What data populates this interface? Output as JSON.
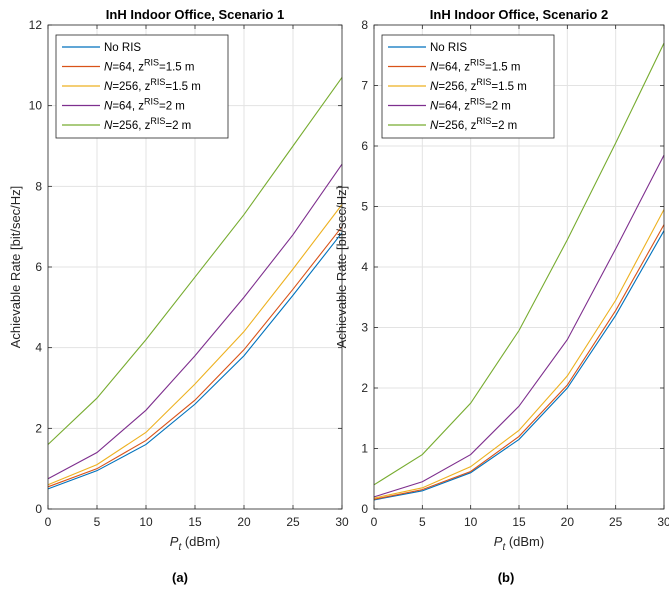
{
  "chart_data": [
    {
      "type": "line",
      "title": "InH Indoor Office, Scenario 1",
      "xlabel": {
        "main": "P",
        "sub": "t",
        "unit": " (dBm)"
      },
      "ylabel": "Achievable Rate [bit/sec/Hz]",
      "panel_label": "(a)",
      "x": [
        0,
        5,
        10,
        15,
        20,
        25,
        30
      ],
      "xlim": [
        0,
        30
      ],
      "ylim": [
        0,
        12
      ],
      "xticks": [
        "0",
        "5",
        "10",
        "15",
        "20",
        "25",
        "30"
      ],
      "yticks": [
        "0",
        "2",
        "4",
        "6",
        "8",
        "10",
        "12"
      ],
      "grid": true,
      "legend_position": "top-left",
      "series": [
        {
          "name": "No RIS",
          "legend": {
            "var": "",
            "mid": "",
            "sup": "",
            "tail": "No RIS"
          },
          "color": "#0072BD",
          "values": [
            0.5,
            0.95,
            1.6,
            2.6,
            3.8,
            5.3,
            6.85
          ]
        },
        {
          "name": "N=64, z^RIS=1.5 m",
          "legend": {
            "var": "N",
            "mid": "=64, z",
            "sup": "RIS",
            "tail": "=1.5 m"
          },
          "color": "#D95319",
          "values": [
            0.55,
            1.0,
            1.7,
            2.7,
            3.95,
            5.45,
            7.0
          ]
        },
        {
          "name": "N=256, z^RIS=1.5 m",
          "legend": {
            "var": "N",
            "mid": "=256, z",
            "sup": "RIS",
            "tail": "=1.5 m"
          },
          "color": "#EDB120",
          "values": [
            0.6,
            1.1,
            1.9,
            3.1,
            4.4,
            5.95,
            7.55
          ]
        },
        {
          "name": "N=64, z^RIS=2 m",
          "legend": {
            "var": "N",
            "mid": "=64, z",
            "sup": "RIS",
            "tail": "=2 m"
          },
          "color": "#7E2F8E",
          "values": [
            0.75,
            1.4,
            2.45,
            3.8,
            5.25,
            6.8,
            8.55
          ]
        },
        {
          "name": "N=256, z^RIS=2 m",
          "legend": {
            "var": "N",
            "mid": "=256, z",
            "sup": "RIS",
            "tail": "=2 m"
          },
          "color": "#77AC30",
          "values": [
            1.6,
            2.75,
            4.2,
            5.75,
            7.3,
            9.0,
            10.7
          ]
        }
      ]
    },
    {
      "type": "line",
      "title": "InH Indoor Office, Scenario 2",
      "xlabel": {
        "main": "P",
        "sub": "t",
        "unit": " (dBm)"
      },
      "ylabel": "Achievable Rate [bit/sec/Hz]",
      "panel_label": "(b)",
      "x": [
        0,
        5,
        10,
        15,
        20,
        25,
        30
      ],
      "xlim": [
        0,
        30
      ],
      "ylim": [
        0,
        8
      ],
      "xticks": [
        "0",
        "5",
        "10",
        "15",
        "20",
        "25",
        "30"
      ],
      "yticks": [
        "0",
        "1",
        "2",
        "3",
        "4",
        "5",
        "6",
        "7",
        "8"
      ],
      "grid": true,
      "legend_position": "top-left",
      "series": [
        {
          "name": "No RIS",
          "legend": {
            "var": "",
            "mid": "",
            "sup": "",
            "tail": "No RIS"
          },
          "color": "#0072BD",
          "values": [
            0.15,
            0.3,
            0.6,
            1.15,
            2.0,
            3.2,
            4.6
          ]
        },
        {
          "name": "N=64, z^RIS=1.5 m",
          "legend": {
            "var": "N",
            "mid": "=64, z",
            "sup": "RIS",
            "tail": "=1.5 m"
          },
          "color": "#D95319",
          "values": [
            0.16,
            0.32,
            0.62,
            1.2,
            2.05,
            3.28,
            4.7
          ]
        },
        {
          "name": "N=256, z^RIS=1.5 m",
          "legend": {
            "var": "N",
            "mid": "=256, z",
            "sup": "RIS",
            "tail": "=1.5 m"
          },
          "color": "#EDB120",
          "values": [
            0.18,
            0.35,
            0.7,
            1.3,
            2.2,
            3.45,
            4.95
          ]
        },
        {
          "name": "N=64, z^RIS=2 m",
          "legend": {
            "var": "N",
            "mid": "=64, z",
            "sup": "RIS",
            "tail": "=2 m"
          },
          "color": "#7E2F8E",
          "values": [
            0.2,
            0.45,
            0.9,
            1.7,
            2.8,
            4.3,
            5.85
          ]
        },
        {
          "name": "N=256, z^RIS=2 m",
          "legend": {
            "var": "N",
            "mid": "=256, z",
            "sup": "RIS",
            "tail": "=2 m"
          },
          "color": "#77AC30",
          "values": [
            0.4,
            0.9,
            1.75,
            2.95,
            4.45,
            6.05,
            7.7
          ]
        }
      ]
    }
  ]
}
